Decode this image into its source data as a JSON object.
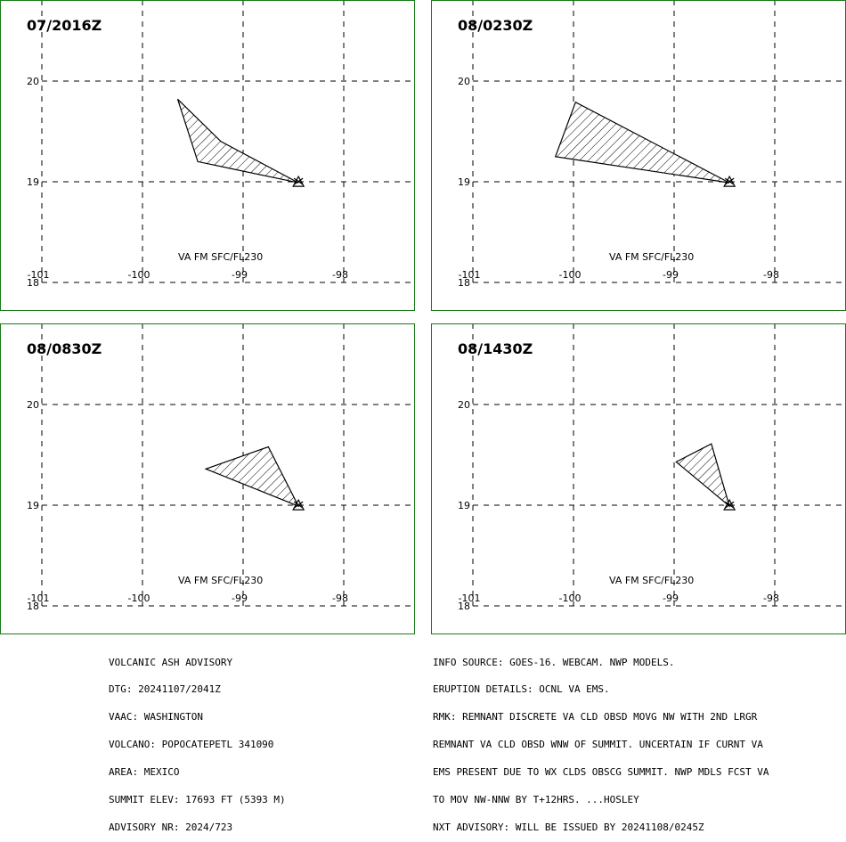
{
  "panels": [
    {
      "title": "07/2016Z",
      "level_label": "VA FM SFC/FL230",
      "ash_polygon": [
        [
          -99.65,
          19.82
        ],
        [
          -99.45,
          19.2
        ],
        [
          -98.45,
          18.99
        ],
        [
          -99.22,
          19.4
        ]
      ]
    },
    {
      "title": "08/0230Z",
      "level_label": "VA FM SFC/FL230",
      "ash_polygon": [
        [
          -100.18,
          19.25
        ],
        [
          -98.45,
          18.99
        ],
        [
          -99.98,
          19.79
        ]
      ]
    },
    {
      "title": "08/0830Z",
      "level_label": "VA FM SFC/FL230",
      "ash_polygon": [
        [
          -99.37,
          19.36
        ],
        [
          -98.45,
          18.99
        ],
        [
          -98.75,
          19.58
        ]
      ]
    },
    {
      "title": "08/1430Z",
      "level_label": "VA FM SFC/FL230",
      "ash_polygon": [
        [
          -98.98,
          19.43
        ],
        [
          -98.45,
          18.99
        ],
        [
          -98.63,
          19.61
        ]
      ]
    }
  ],
  "map": {
    "lon_ticks": [
      "-101",
      "-100",
      "-99",
      "-98"
    ],
    "lat_ticks": [
      "20",
      "19",
      "18"
    ],
    "lon_range": [
      -101,
      -98
    ],
    "lat_range": [
      18,
      20
    ],
    "volcano_marker": "triangle",
    "volcano_location": [
      -98.45,
      18.99
    ],
    "grid_lines": "dashed"
  },
  "advisory_left": [
    "VOLCANIC ASH ADVISORY",
    "DTG: 20241107/2041Z",
    "VAAC: WASHINGTON",
    "VOLCANO: POPOCATEPETL 341090",
    "AREA: MEXICO",
    "SUMMIT ELEV: 17693 FT (5393 M)",
    "ADVISORY NR: 2024/723"
  ],
  "advisory_right": [
    "INFO SOURCE: GOES-16. WEBCAM. NWP MODELS.",
    "ERUPTION DETAILS: OCNL VA EMS.",
    "RMK: REMNANT DISCRETE VA CLD OBSD MOVG NW WITH 2ND LRGR",
    "REMNANT VA CLD OBSD WNW OF SUMMIT. UNCERTAIN IF CURNT VA",
    "EMS PRESENT DUE TO WX CLDS OBSCG SUMMIT. NWP MDLS FCST VA",
    "TO MOV NW-NNW BY T+12HRS. ...HOSLEY",
    "NXT ADVISORY: WILL BE ISSUED BY 20241108/0245Z"
  ],
  "colors": {
    "panel_border": "#1a7a1a",
    "ink": "#000000",
    "background": "#ffffff"
  }
}
